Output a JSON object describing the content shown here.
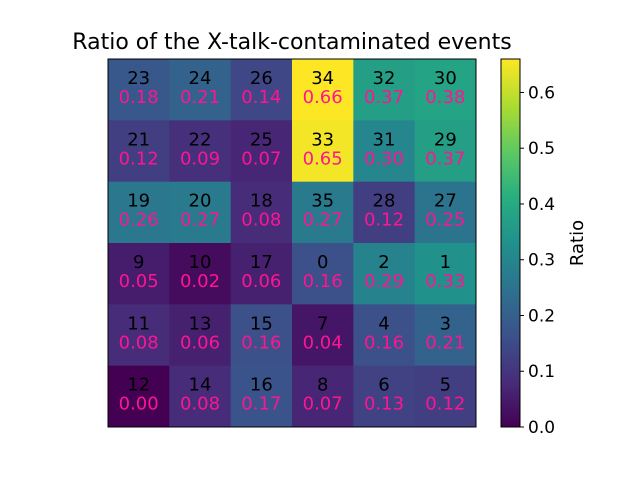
{
  "chart_data": {
    "type": "heatmap",
    "title": "Ratio of the X-talk-contaminated events",
    "rows": [
      [
        {
          "id": "23",
          "ratio": 0.18
        },
        {
          "id": "24",
          "ratio": 0.21
        },
        {
          "id": "26",
          "ratio": 0.14
        },
        {
          "id": "34",
          "ratio": 0.66
        },
        {
          "id": "32",
          "ratio": 0.37
        },
        {
          "id": "30",
          "ratio": 0.38
        }
      ],
      [
        {
          "id": "21",
          "ratio": 0.12
        },
        {
          "id": "22",
          "ratio": 0.09
        },
        {
          "id": "25",
          "ratio": 0.07
        },
        {
          "id": "33",
          "ratio": 0.65
        },
        {
          "id": "31",
          "ratio": 0.3
        },
        {
          "id": "29",
          "ratio": 0.37
        }
      ],
      [
        {
          "id": "19",
          "ratio": 0.26
        },
        {
          "id": "20",
          "ratio": 0.27
        },
        {
          "id": "18",
          "ratio": 0.08
        },
        {
          "id": "35",
          "ratio": 0.27
        },
        {
          "id": "28",
          "ratio": 0.12
        },
        {
          "id": "27",
          "ratio": 0.25
        }
      ],
      [
        {
          "id": "9",
          "ratio": 0.05
        },
        {
          "id": "10",
          "ratio": 0.02
        },
        {
          "id": "17",
          "ratio": 0.06
        },
        {
          "id": "0",
          "ratio": 0.16
        },
        {
          "id": "2",
          "ratio": 0.29
        },
        {
          "id": "1",
          "ratio": 0.33
        }
      ],
      [
        {
          "id": "11",
          "ratio": 0.08
        },
        {
          "id": "13",
          "ratio": 0.06
        },
        {
          "id": "15",
          "ratio": 0.16
        },
        {
          "id": "7",
          "ratio": 0.04
        },
        {
          "id": "4",
          "ratio": 0.16
        },
        {
          "id": "3",
          "ratio": 0.21
        }
      ],
      [
        {
          "id": "12",
          "ratio": 0.0
        },
        {
          "id": "14",
          "ratio": 0.08
        },
        {
          "id": "16",
          "ratio": 0.17
        },
        {
          "id": "8",
          "ratio": 0.07
        },
        {
          "id": "6",
          "ratio": 0.13
        },
        {
          "id": "5",
          "ratio": 0.12
        }
      ]
    ],
    "colorbar": {
      "label": "Ratio",
      "range": [
        0.0,
        0.66
      ],
      "ticks": [
        0.0,
        0.1,
        0.2,
        0.3,
        0.4,
        0.5,
        0.6
      ],
      "tick_labels": [
        "0.0",
        "0.1",
        "0.2",
        "0.3",
        "0.4",
        "0.5",
        "0.6"
      ],
      "colormap": "viridis"
    },
    "colors": {
      "id_text": "#000000",
      "ratio_text": "#ff1493"
    }
  }
}
